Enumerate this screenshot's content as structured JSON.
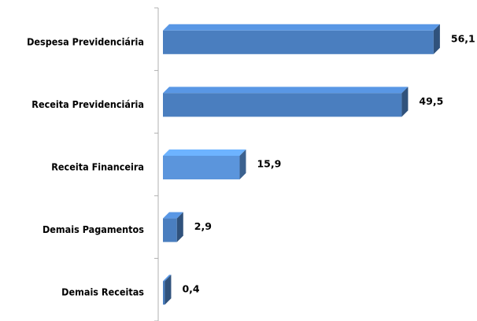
{
  "chart_data": {
    "type": "bar",
    "orientation": "horizontal",
    "categories": [
      "Despesa Previdenciária",
      "Receita Previdenciária",
      "Receita Financeira",
      "Demais Pagamentos",
      "Demais Receitas"
    ],
    "values": [
      56.1,
      49.5,
      15.9,
      2.9,
      0.4
    ],
    "value_labels": [
      "56,1",
      "49,5",
      "15,9",
      "2,9",
      "0,4"
    ],
    "colors": [
      "#4a7ebf",
      "#4a7ebf",
      "#5b95dc",
      "#4a7ebf",
      "#4a7ebf"
    ]
  }
}
